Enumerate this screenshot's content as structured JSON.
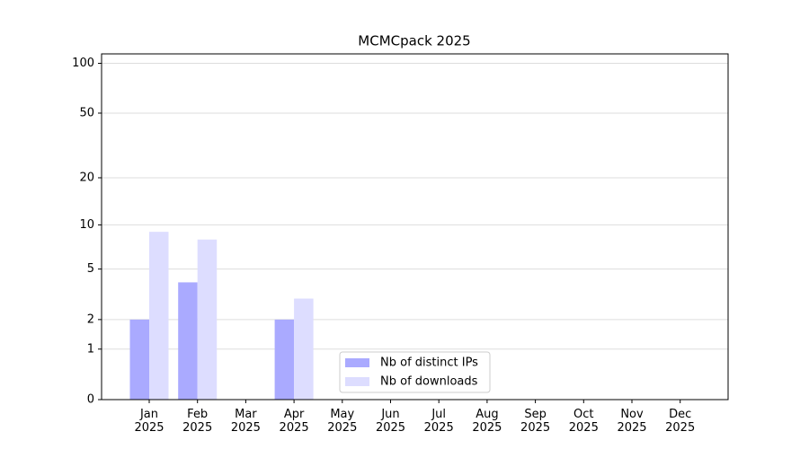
{
  "chart_data": {
    "type": "bar",
    "title": "MCMCpack 2025",
    "categories": [
      "Jan\n2025",
      "Feb\n2025",
      "Mar\n2025",
      "Apr\n2025",
      "May\n2025",
      "Jun\n2025",
      "Jul\n2025",
      "Aug\n2025",
      "Sep\n2025",
      "Oct\n2025",
      "Nov\n2025",
      "Dec\n2025"
    ],
    "series": [
      {
        "name": "Nb of distinct IPs",
        "color": "#aaaaff",
        "values": [
          2,
          4,
          0,
          2,
          0,
          0,
          0,
          0,
          0,
          0,
          0,
          0
        ]
      },
      {
        "name": "Nb of downloads",
        "color": "#ddddff",
        "values": [
          9,
          8,
          0,
          3,
          0,
          0,
          0,
          0,
          0,
          0,
          0,
          0
        ]
      }
    ],
    "yscale": "log1p",
    "ylim": [
      0,
      114
    ],
    "yticks": [
      0,
      1,
      2,
      5,
      10,
      20,
      50,
      100
    ],
    "grid": true,
    "legend": "lower center"
  }
}
